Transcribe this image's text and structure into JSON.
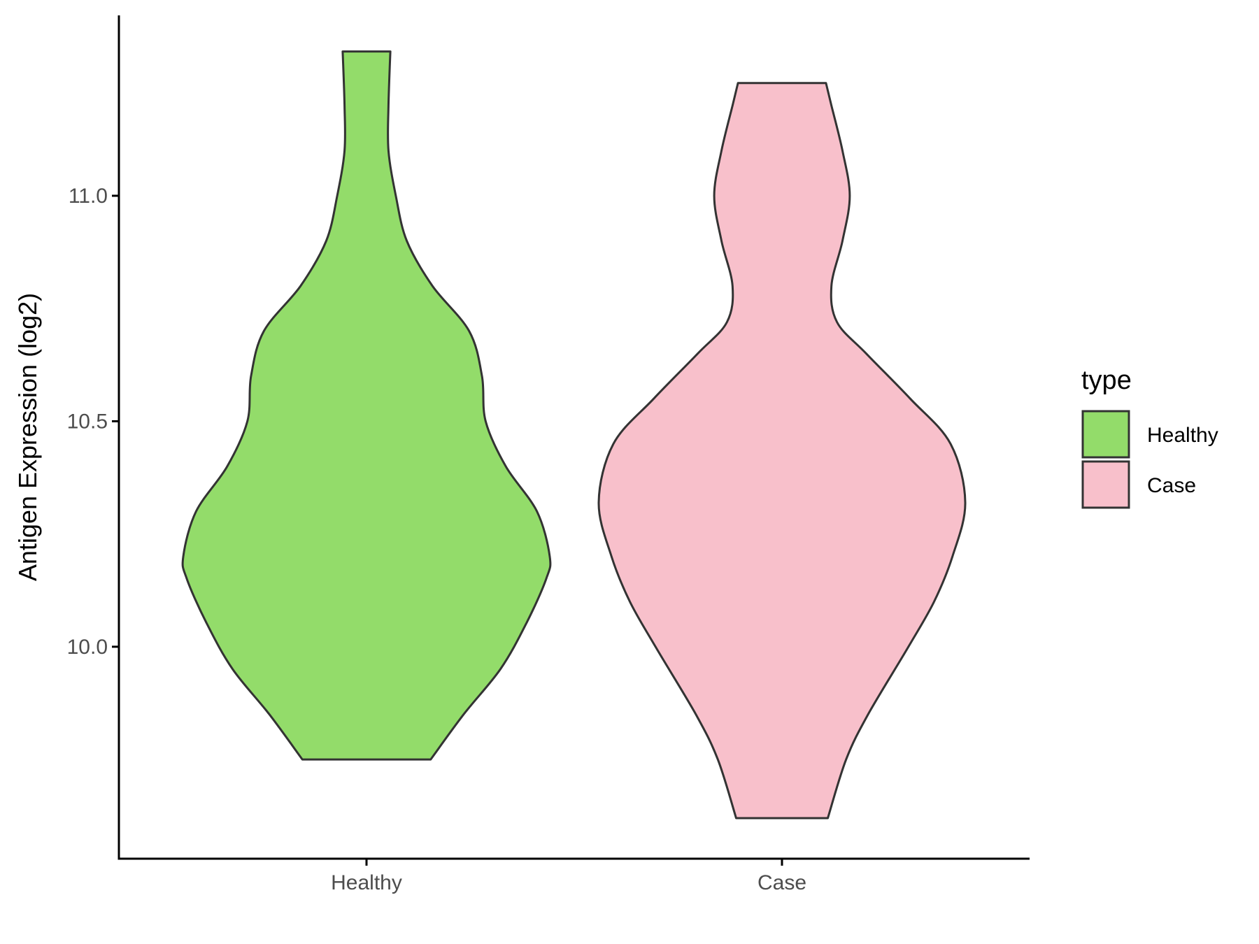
{
  "chart_data": {
    "type": "violin",
    "title": "",
    "xlabel": "",
    "ylabel": "Antigen Expression (log2)",
    "ylim": [
      9.53,
      11.4
    ],
    "y_ticks": [
      10.0,
      10.5,
      11.0
    ],
    "y_tick_labels": [
      "10.0",
      "10.5",
      "11.0"
    ],
    "categories": [
      "Healthy",
      "Case"
    ],
    "legend": {
      "title": "type",
      "position": "right",
      "entries": [
        {
          "label": "Healthy",
          "color": "#93dc6a"
        },
        {
          "label": "Case",
          "color": "#f8c0cb"
        }
      ]
    },
    "series": [
      {
        "category": "Healthy",
        "color": "#93dc6a",
        "min": 9.75,
        "max": 11.32,
        "density_profile": [
          [
            9.75,
            0.35
          ],
          [
            9.85,
            0.53
          ],
          [
            9.95,
            0.73
          ],
          [
            10.05,
            0.87
          ],
          [
            10.15,
            0.98
          ],
          [
            10.2,
            1.0
          ],
          [
            10.3,
            0.93
          ],
          [
            10.4,
            0.76
          ],
          [
            10.5,
            0.65
          ],
          [
            10.6,
            0.63
          ],
          [
            10.7,
            0.56
          ],
          [
            10.8,
            0.36
          ],
          [
            10.9,
            0.22
          ],
          [
            11.0,
            0.16
          ],
          [
            11.1,
            0.12
          ],
          [
            11.2,
            0.12
          ],
          [
            11.32,
            0.13
          ]
        ]
      },
      {
        "category": "Case",
        "color": "#f8c0cb",
        "min": 9.62,
        "max": 11.25,
        "density_profile": [
          [
            9.62,
            0.25
          ],
          [
            9.75,
            0.35
          ],
          [
            9.85,
            0.47
          ],
          [
            10.0,
            0.69
          ],
          [
            10.1,
            0.83
          ],
          [
            10.2,
            0.93
          ],
          [
            10.32,
            1.0
          ],
          [
            10.45,
            0.92
          ],
          [
            10.55,
            0.7
          ],
          [
            10.65,
            0.46
          ],
          [
            10.72,
            0.3
          ],
          [
            10.8,
            0.27
          ],
          [
            10.9,
            0.33
          ],
          [
            11.0,
            0.37
          ],
          [
            11.1,
            0.33
          ],
          [
            11.2,
            0.27
          ],
          [
            11.25,
            0.24
          ]
        ]
      }
    ]
  }
}
